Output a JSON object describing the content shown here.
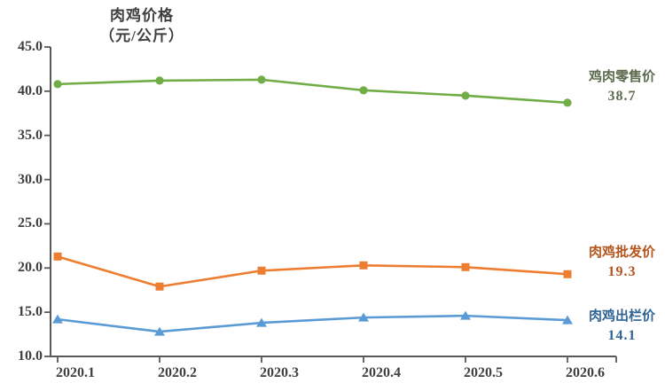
{
  "page": {
    "background": "#ffffff"
  },
  "title": {
    "line1": "肉鸡价格",
    "line2": "（元/公斤）"
  },
  "chart_data": {
    "type": "line",
    "title": "肉鸡价格（元/公斤）",
    "x_labels": [
      "2020.1",
      "2020.2",
      "2020.3",
      "2020.4",
      "2020.5",
      "2020.6"
    ],
    "y_ticks": [
      "45.0",
      "40.0",
      "35.0",
      "30.0",
      "25.0",
      "20.0",
      "15.0",
      "10.0"
    ],
    "ylim": [
      10,
      45
    ],
    "ytick_step": 5,
    "grid": false,
    "legend_position": "right-end-labels",
    "axis_color": "#595959",
    "text_color": "#404040",
    "series": [
      {
        "key": "retail",
        "name": "鸡肉零售价",
        "end_label": "38.7",
        "marker": "circle",
        "color": "#70AD47",
        "label_color": "#5B6B4E",
        "values": [
          40.8,
          41.2,
          41.3,
          40.1,
          39.5,
          38.7
        ]
      },
      {
        "key": "wholesale",
        "name": "肉鸡批发价",
        "end_label": "19.3",
        "marker": "square",
        "color": "#ED7D31",
        "label_color": "#B5541C",
        "values": [
          21.3,
          17.9,
          19.7,
          20.3,
          20.1,
          19.3
        ]
      },
      {
        "key": "farmgate",
        "name": "肉鸡出栏价",
        "end_label": "14.1",
        "marker": "triangle",
        "color": "#5B9BD5",
        "label_color": "#2F6493",
        "values": [
          14.2,
          12.8,
          13.8,
          14.4,
          14.6,
          14.1
        ]
      }
    ]
  }
}
